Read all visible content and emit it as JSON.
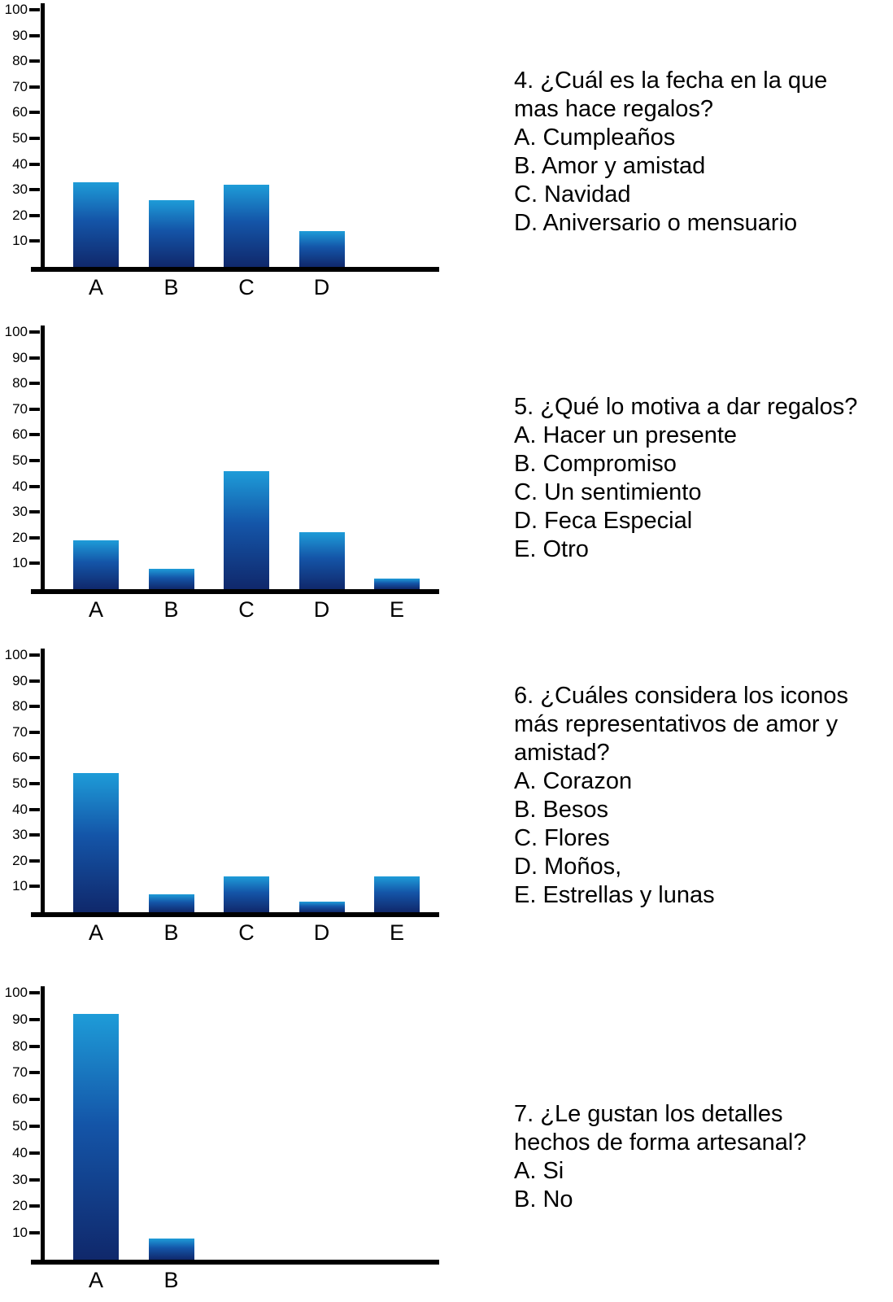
{
  "page": {
    "background": "#ffffff",
    "colors": {
      "bar_gradient_top": "#1e9cd8",
      "bar_gradient_mid": "#1455a8",
      "bar_gradient_bottom": "#10286b",
      "axis": "#000000",
      "text": "#000000"
    }
  },
  "chart_data": [
    {
      "type": "bar",
      "categories": [
        "A",
        "B",
        "C",
        "D"
      ],
      "values": [
        33,
        26,
        32,
        14
      ],
      "title": "",
      "xlabel": "",
      "ylabel": "",
      "ylim": [
        0,
        100
      ],
      "yticks": [
        10,
        20,
        30,
        40,
        50,
        60,
        70,
        80,
        90,
        100
      ],
      "grid": false,
      "legend": false
    },
    {
      "type": "bar",
      "categories": [
        "A",
        "B",
        "C",
        "D",
        "E"
      ],
      "values": [
        19,
        8,
        46,
        22,
        4
      ],
      "title": "",
      "xlabel": "",
      "ylabel": "",
      "ylim": [
        0,
        100
      ],
      "yticks": [
        10,
        20,
        30,
        40,
        50,
        60,
        70,
        80,
        90,
        100
      ],
      "grid": false,
      "legend": false
    },
    {
      "type": "bar",
      "categories": [
        "A",
        "B",
        "C",
        "D",
        "E"
      ],
      "values": [
        54,
        7,
        14,
        4,
        14
      ],
      "title": "",
      "xlabel": "",
      "ylabel": "",
      "ylim": [
        0,
        100
      ],
      "yticks": [
        10,
        20,
        30,
        40,
        50,
        60,
        70,
        80,
        90,
        100
      ],
      "grid": false,
      "legend": false
    },
    {
      "type": "bar",
      "categories": [
        "A",
        "B"
      ],
      "values": [
        92,
        8
      ],
      "title": "",
      "xlabel": "",
      "ylabel": "",
      "ylim": [
        0,
        100
      ],
      "yticks": [
        10,
        20,
        30,
        40,
        50,
        60,
        70,
        80,
        90,
        100
      ],
      "grid": false,
      "legend": false
    }
  ],
  "questions": [
    {
      "text": "4. ¿Cuál es la fecha en la que mas hace regalos?",
      "options": [
        "A. Cumpleaños",
        "B. Amor y amistad",
        "C. Navidad",
        "D. Aniversario o mensuario"
      ]
    },
    {
      "text": "5. ¿Qué lo motiva a dar regalos?",
      "options": [
        "A. Hacer un presente",
        "B. Compromiso",
        "C. Un sentimiento",
        "D. Feca Especial",
        "E. Otro"
      ]
    },
    {
      "text": "6. ¿Cuáles considera los iconos más representativos de amor y amistad?",
      "options": [
        "A. Corazon",
        "B. Besos",
        "C. Flores",
        "D. Moños,",
        "E. Estrellas y lunas"
      ]
    },
    {
      "text": "7. ¿Le gustan los detalles hechos de forma artesanal?",
      "options": [
        "A. Si",
        "B. No"
      ]
    }
  ]
}
